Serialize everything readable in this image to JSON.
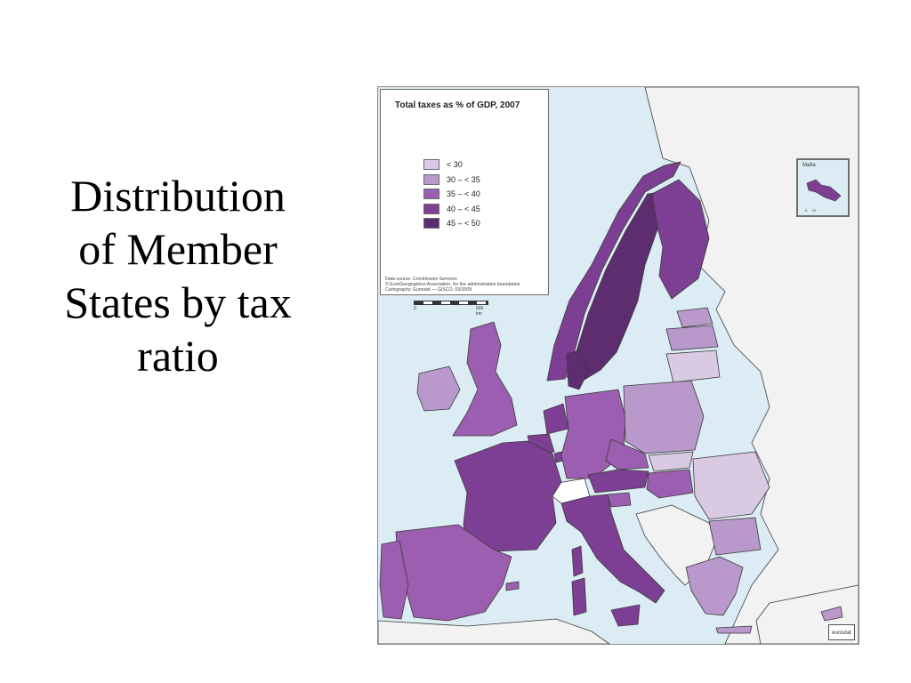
{
  "slide": {
    "title_lines": [
      "Distribution",
      "of Member",
      "States by tax",
      "ratio"
    ]
  },
  "map": {
    "title": "Total taxes as % of GDP, 2007",
    "legend": [
      {
        "label": "< 30",
        "color": "#d9c9e3"
      },
      {
        "label": "30 – < 35",
        "color": "#b998cc"
      },
      {
        "label": "35 – < 40",
        "color": "#9c5eb0"
      },
      {
        "label": "40 – < 45",
        "color": "#7d3f93"
      },
      {
        "label": "45 – < 50",
        "color": "#5d2d70"
      }
    ],
    "source_lines": [
      "Data source: Commission Services",
      "© EuroGeographics Association, for the administrative boundaries",
      "Cartography: Eurostat — GISCO, 03/2009"
    ],
    "scale": {
      "start": "0",
      "end": "600 km"
    },
    "inset": {
      "label": "Malta",
      "scale_start": "0",
      "scale_end": "10"
    },
    "logo": "eurostat",
    "colors": {
      "sea": "#dcecf4",
      "non_member": "#f2f2f2",
      "switzerland": "#ffffff",
      "border": "#3a3a3a"
    }
  }
}
